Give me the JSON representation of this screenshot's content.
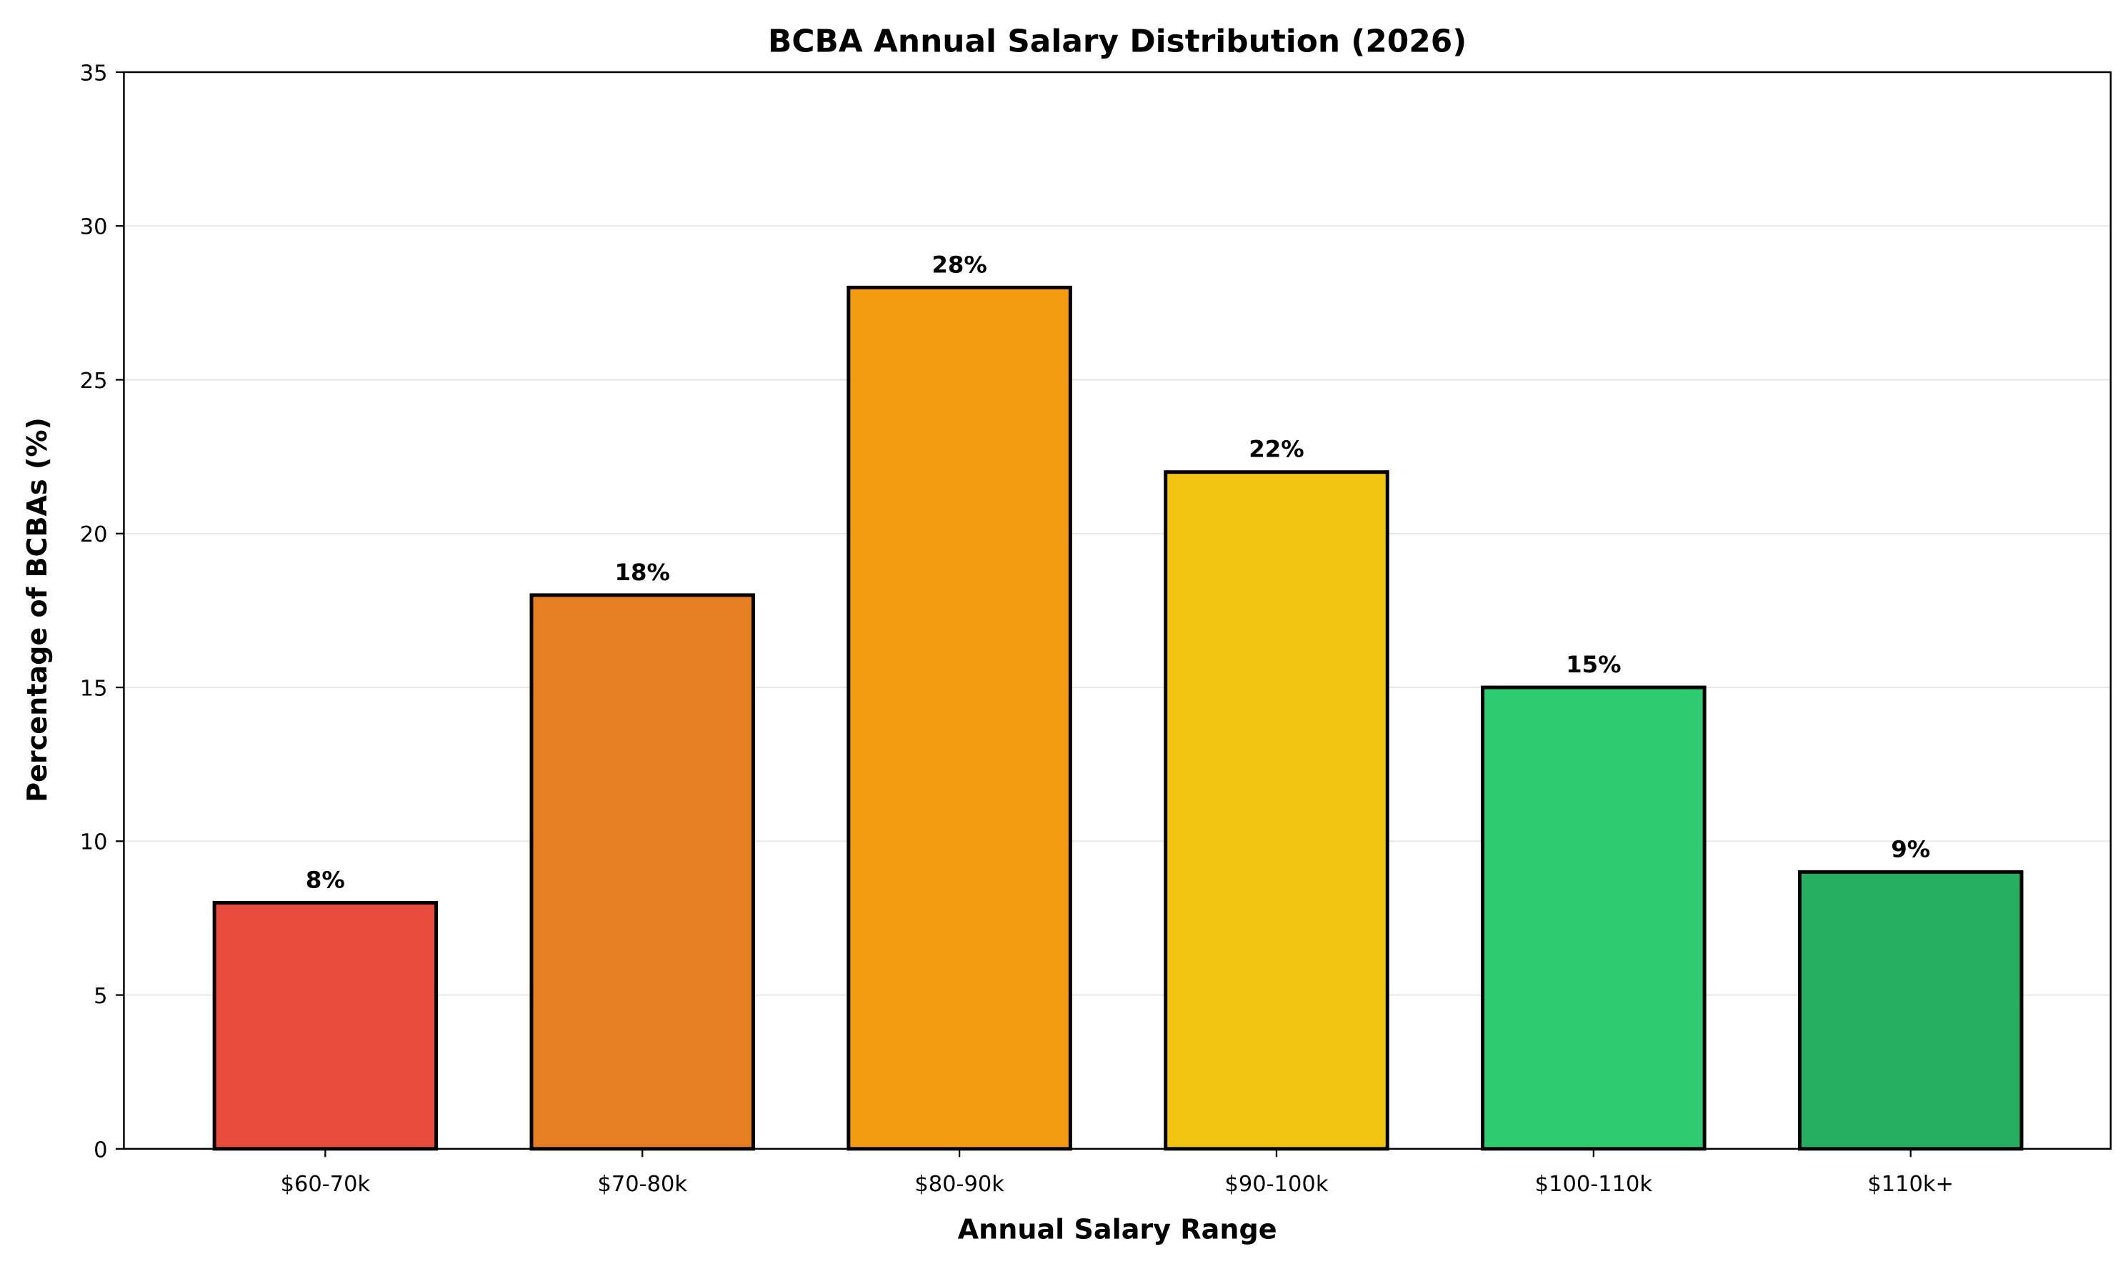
{
  "chart_data": {
    "type": "bar",
    "title": "BCBA Annual Salary Distribution (2026)",
    "xlabel": "Annual Salary Range",
    "ylabel": "Percentage of BCBAs (%)",
    "categories": [
      "$60-70k",
      "$70-80k",
      "$80-90k",
      "$90-100k",
      "$100-110k",
      "$110k+"
    ],
    "values": [
      8,
      18,
      28,
      22,
      15,
      9
    ],
    "data_labels": [
      "8%",
      "18%",
      "28%",
      "22%",
      "15%",
      "9%"
    ],
    "colors": [
      "#e74c3c",
      "#e67e22",
      "#f39c12",
      "#f1c40f",
      "#2ecc71",
      "#27ae60"
    ],
    "ylim": [
      0,
      35
    ],
    "yticks": [
      "0",
      "5",
      "10",
      "15",
      "20",
      "25",
      "30",
      "35"
    ],
    "grid": "horizontal"
  }
}
